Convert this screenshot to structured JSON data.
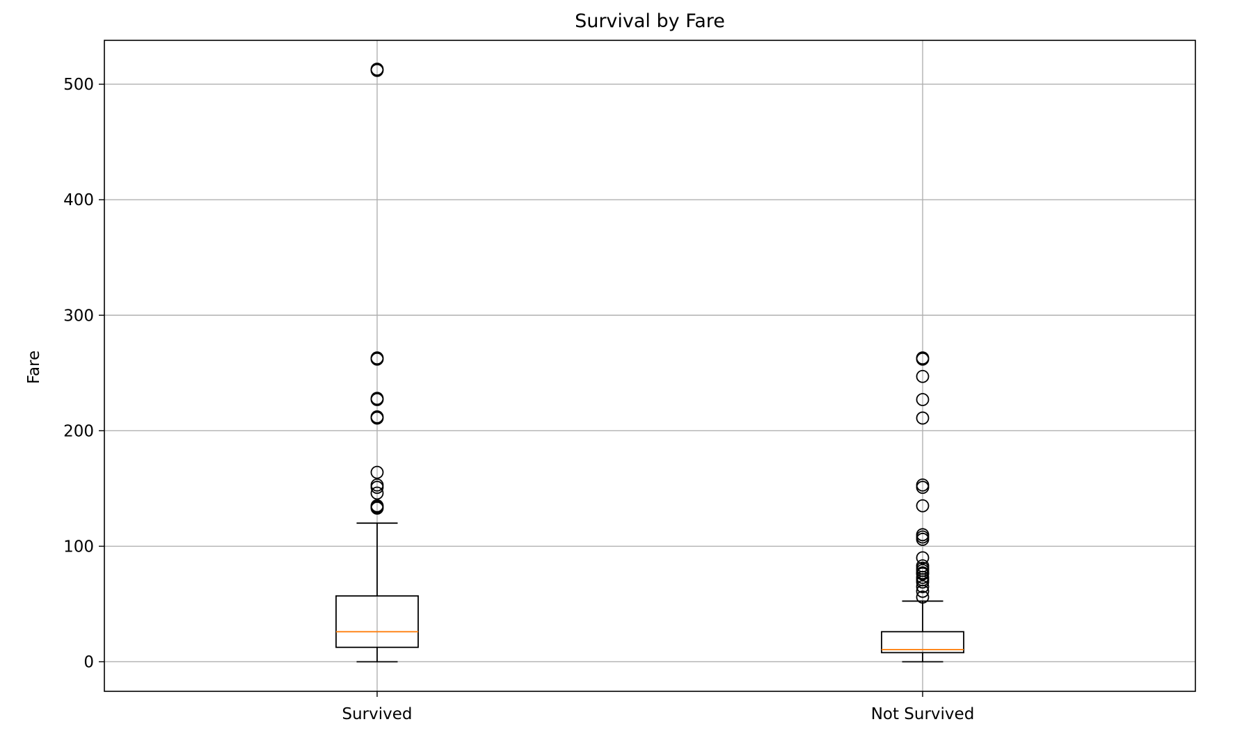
{
  "chart_data": {
    "type": "box",
    "title": "Survival by Fare",
    "xlabel": "",
    "ylabel": "Fare",
    "ylim": [
      -25.6,
      538
    ],
    "yticks": [
      0,
      100,
      200,
      300,
      400,
      500
    ],
    "grid": true,
    "legend": "none",
    "categories": [
      "Survived",
      "Not Survived"
    ],
    "boxes": [
      {
        "category": "Survived",
        "whisker_low": 0,
        "q1": 12.5,
        "median": 26,
        "q3": 57,
        "whisker_high": 120,
        "outliers": [
          133,
          134,
          135,
          146,
          151,
          153,
          164,
          211,
          212,
          227,
          228,
          262,
          263,
          512,
          513
        ]
      },
      {
        "category": "Not Survived",
        "whisker_low": 0,
        "q1": 7.9,
        "median": 10.5,
        "q3": 26,
        "whisker_high": 52.5,
        "outliers": [
          56,
          61,
          65,
          69,
          71,
          73,
          76,
          77,
          79,
          81,
          83,
          90,
          106,
          108,
          110,
          135,
          151,
          153,
          211,
          227,
          247,
          262,
          263
        ]
      }
    ],
    "colors": {
      "box": "#000000",
      "median": "#ff7f0e",
      "grid": "#b0b0b0",
      "axes": "#000000"
    }
  }
}
